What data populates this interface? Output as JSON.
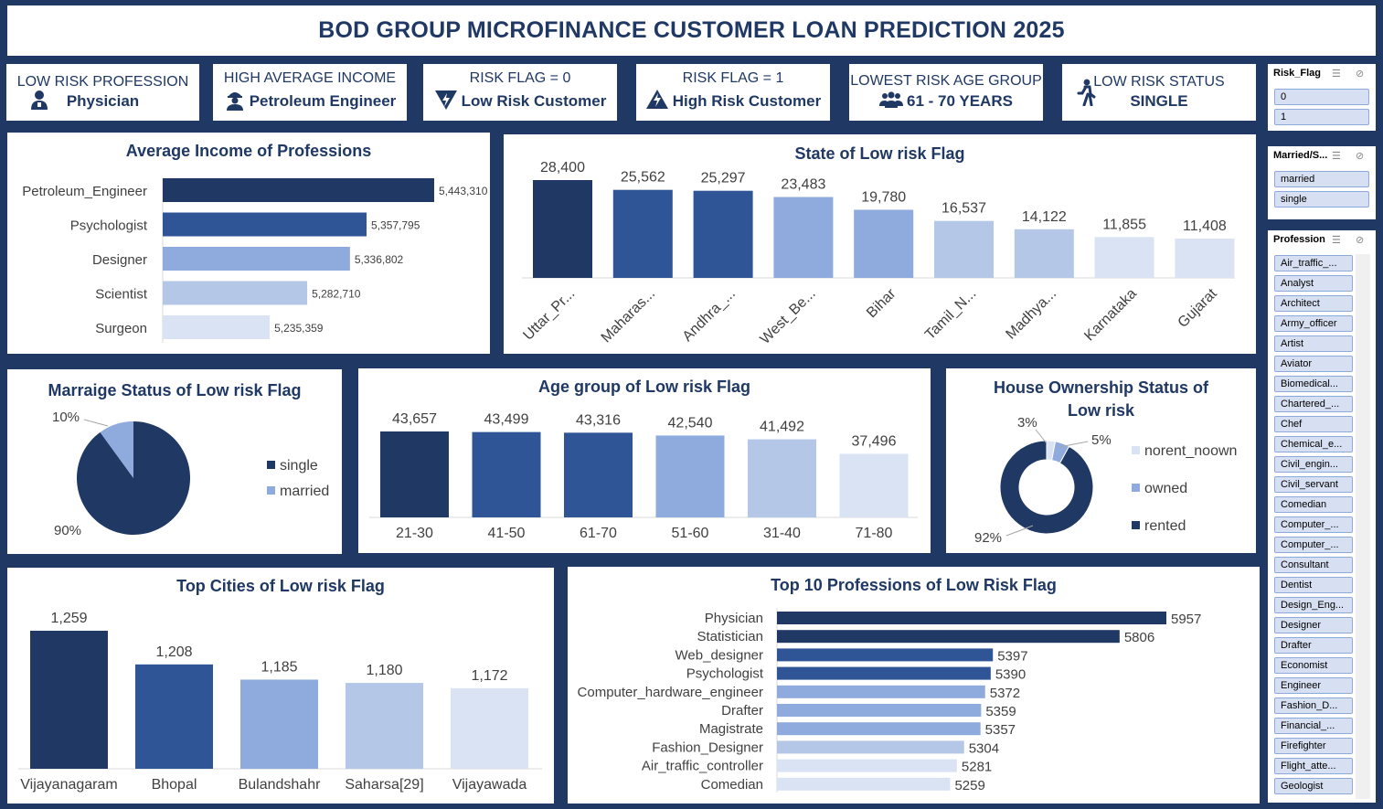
{
  "title": "BOD GROUP MICROFINANCE CUSTOMER LOAN PREDICTION 2025",
  "kpis": [
    {
      "label": "LOW RISK PROFESSION",
      "value": "Physician",
      "icon": "doctor-icon"
    },
    {
      "label": "HIGH AVERAGE INCOME",
      "value": "Petroleum Engineer",
      "icon": "engineer-icon"
    },
    {
      "label": "RISK FLAG = 0",
      "value": "Low Risk Customer",
      "icon": "lightning-down-icon"
    },
    {
      "label": "RISK FLAG = 1",
      "value": "High Risk Customer",
      "icon": "lightning-up-icon"
    },
    {
      "label": "LOWEST RISK AGE GROUP",
      "value": "61 - 70 YEARS",
      "icon": "group-icon"
    },
    {
      "label": "LOW RISK  STATUS",
      "value": "SINGLE",
      "icon": "walking-person-icon"
    }
  ],
  "colors": {
    "dark": "#1f3864",
    "mid_dark": "#2f5597",
    "mid": "#8faadc",
    "light": "#b4c7e7",
    "lighter": "#dae3f3",
    "background": "#1f3864"
  },
  "charts": {
    "income": {
      "title": "Average Income of Professions",
      "type": "bar",
      "categories": [
        "Petroleum_Engineer",
        "Psychologist",
        "Designer",
        "Scientist",
        "Surgeon"
      ],
      "values": [
        5443310,
        5357795,
        5336802,
        5282710,
        5235359
      ],
      "labels": [
        "5,443,310",
        "5,357,795",
        "5,336,802",
        "5,282,710",
        "5,235,359"
      ]
    },
    "state": {
      "title": "State of Low risk Flag",
      "type": "bar",
      "categories": [
        "Uttar_Pr...",
        "Maharas...",
        "Andhra_...",
        "West_Be...",
        "Bihar",
        "Tamil_N...",
        "Madhya...",
        "Karnataka",
        "Gujarat"
      ],
      "values": [
        28400,
        25562,
        25297,
        23483,
        19780,
        16537,
        14122,
        11855,
        11408
      ],
      "labels": [
        "28,400",
        "25,562",
        "25,297",
        "23,483",
        "19,780",
        "16,537",
        "14,122",
        "11,855",
        "11,408"
      ]
    },
    "marriage": {
      "title": "Marraige Status of Low risk Flag",
      "type": "pie",
      "categories": [
        "single",
        "married"
      ],
      "values": [
        90,
        10
      ],
      "labels": [
        "90%",
        "10%"
      ]
    },
    "age": {
      "title": "Age group of Low risk Flag",
      "type": "bar",
      "categories": [
        "21-30",
        "41-50",
        "61-70",
        "51-60",
        "31-40",
        "71-80"
      ],
      "values": [
        43657,
        43499,
        43316,
        42540,
        41492,
        37496
      ],
      "labels": [
        "43,657",
        "43,499",
        "43,316",
        "42,540",
        "41,492",
        "37,496"
      ]
    },
    "house": {
      "title_line1": "House Ownership Status of",
      "title_line2": "Low risk",
      "type": "pie",
      "categories": [
        "norent_noown",
        "owned",
        "rented"
      ],
      "values": [
        3,
        5,
        92
      ],
      "labels": [
        "3%",
        "5%",
        "92%"
      ]
    },
    "cities": {
      "title": "Top Cities of Low risk Flag",
      "type": "bar",
      "categories": [
        "Vijayanagaram",
        "Bhopal",
        "Bulandshahr",
        "Saharsa[29]",
        "Vijayawada"
      ],
      "values": [
        1259,
        1208,
        1185,
        1180,
        1172
      ],
      "labels": [
        "1,259",
        "1,208",
        "1,185",
        "1,180",
        "1,172"
      ]
    },
    "professions": {
      "title": "Top 10 Professions of Low Risk Flag",
      "type": "bar",
      "categories": [
        "Physician",
        "Statistician",
        "Web_designer",
        "Psychologist",
        "Computer_hardware_engineer",
        "Drafter",
        "Magistrate",
        "Fashion_Designer",
        "Air_traffic_controller",
        "Comedian"
      ],
      "values": [
        5957,
        5806,
        5397,
        5390,
        5372,
        5359,
        5357,
        5304,
        5281,
        5259
      ],
      "labels": [
        "5957",
        "5806",
        "5397",
        "5390",
        "5372",
        "5359",
        "5357",
        "5304",
        "5281",
        "5259"
      ]
    }
  },
  "chart_data": [
    {
      "type": "bar",
      "title": "Average Income of Professions",
      "categories": [
        "Petroleum_Engineer",
        "Psychologist",
        "Designer",
        "Scientist",
        "Surgeon"
      ],
      "values": [
        5443310,
        5357795,
        5336802,
        5282710,
        5235359
      ]
    },
    {
      "type": "bar",
      "title": "State of Low risk Flag",
      "categories": [
        "Uttar_Pr...",
        "Maharas...",
        "Andhra_...",
        "West_Be...",
        "Bihar",
        "Tamil_N...",
        "Madhya...",
        "Karnataka",
        "Gujarat"
      ],
      "values": [
        28400,
        25562,
        25297,
        23483,
        19780,
        16537,
        14122,
        11855,
        11408
      ]
    },
    {
      "type": "pie",
      "title": "Marraige Status of Low risk Flag",
      "categories": [
        "single",
        "married"
      ],
      "values": [
        90,
        10
      ]
    },
    {
      "type": "bar",
      "title": "Age group of Low risk Flag",
      "categories": [
        "21-30",
        "41-50",
        "61-70",
        "51-60",
        "31-40",
        "71-80"
      ],
      "values": [
        43657,
        43499,
        43316,
        42540,
        41492,
        37496
      ]
    },
    {
      "type": "pie",
      "title": "House Ownership Status of Low risk",
      "categories": [
        "norent_noown",
        "owned",
        "rented"
      ],
      "values": [
        3,
        5,
        92
      ]
    },
    {
      "type": "bar",
      "title": "Top Cities of Low risk Flag",
      "categories": [
        "Vijayanagaram",
        "Bhopal",
        "Bulandshahr",
        "Saharsa[29]",
        "Vijayawada"
      ],
      "values": [
        1259,
        1208,
        1185,
        1180,
        1172
      ]
    },
    {
      "type": "bar",
      "title": "Top 10 Professions of Low Risk Flag",
      "categories": [
        "Physician",
        "Statistician",
        "Web_designer",
        "Psychologist",
        "Computer_hardware_engineer",
        "Drafter",
        "Magistrate",
        "Fashion_Designer",
        "Air_traffic_controller",
        "Comedian"
      ],
      "values": [
        5957,
        5806,
        5397,
        5390,
        5372,
        5359,
        5357,
        5304,
        5281,
        5259
      ]
    }
  ],
  "slicers": {
    "risk_flag": {
      "title": "Risk_Flag",
      "items": [
        "0",
        "1"
      ]
    },
    "married": {
      "title": "Married/S...",
      "items": [
        "married",
        "single"
      ]
    },
    "profession": {
      "title": "Profession",
      "items": [
        "Air_traffic_...",
        "Analyst",
        "Architect",
        "Army_officer",
        "Artist",
        "Aviator",
        "Biomedical...",
        "Chartered_...",
        "Chef",
        "Chemical_e...",
        "Civil_engin...",
        "Civil_servant",
        "Comedian",
        "Computer_...",
        "Computer_...",
        "Consultant",
        "Dentist",
        "Design_Eng...",
        "Designer",
        "Drafter",
        "Economist",
        "Engineer",
        "Fashion_D...",
        "Financial_...",
        "Firefighter",
        "Flight_atte...",
        "Geologist"
      ]
    }
  }
}
